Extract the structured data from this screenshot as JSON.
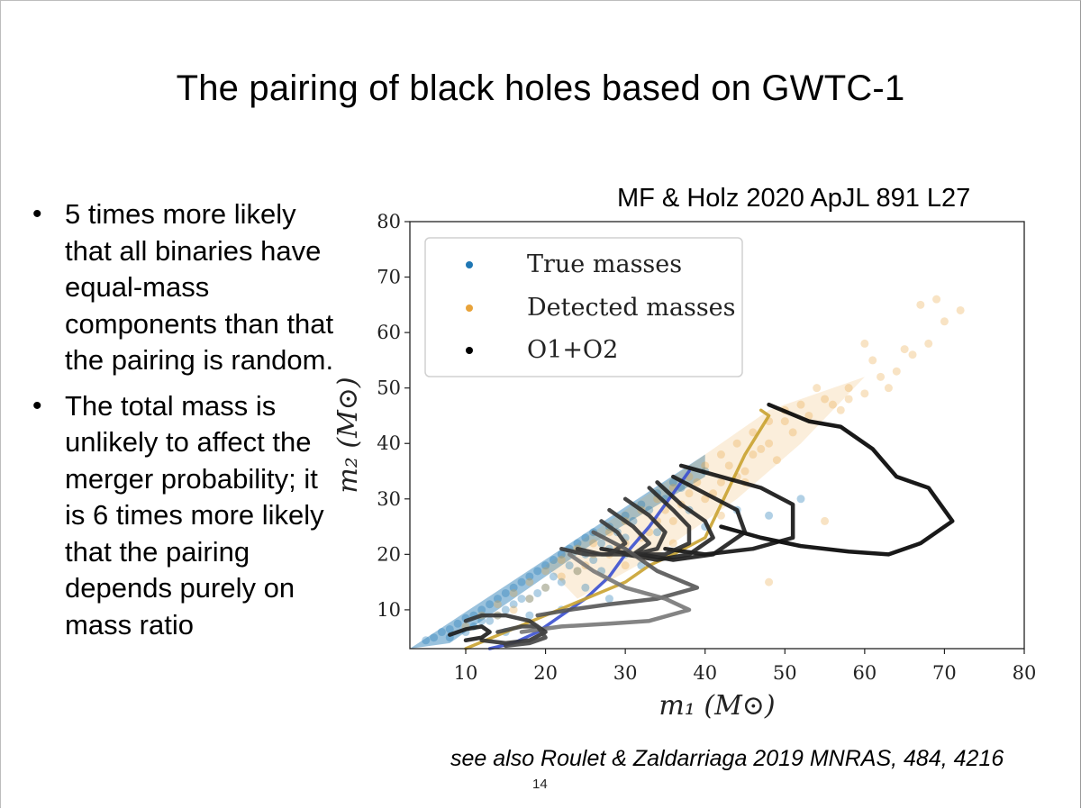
{
  "slide": {
    "title": "The pairing of black holes based on GWTC-1",
    "page_number": "14"
  },
  "bullets": [
    {
      "text": "5 times more likely that all binaries have equal-mass components than that the pairing is random."
    },
    {
      "text": "The total mass is unlikely to affect the merger probability; it is 6 times more likely that the pairing depends purely on mass ratio"
    }
  ],
  "bullet_symbol": "•",
  "citations": {
    "top": "MF & Holz 2020 ApJL 891 L27",
    "bottom": "see also Roulet & Zaldarriaga 2019 MNRAS, 484, 4216"
  },
  "chart_data": {
    "type": "scatter",
    "title": "",
    "xlabel": "m₁ (M⊙)",
    "ylabel": "m₂ (M⊙)",
    "xlim": [
      3,
      80
    ],
    "ylim": [
      3,
      80
    ],
    "xticks": [
      10,
      20,
      30,
      40,
      50,
      60,
      70,
      80
    ],
    "yticks": [
      10,
      20,
      30,
      40,
      50,
      60,
      70,
      80
    ],
    "legend_position": "top-left",
    "legend": [
      {
        "label": "True masses",
        "color": "#1f77b4"
      },
      {
        "label": "Detected masses",
        "color": "#e8a33a"
      },
      {
        "label": "O1+O2",
        "color": "#000000"
      }
    ],
    "scatter_series": [
      {
        "name": "True masses",
        "color": "#1f77b4",
        "points": [
          [
            5,
            4.5
          ],
          [
            6,
            5
          ],
          [
            7,
            6
          ],
          [
            8,
            6.5
          ],
          [
            9,
            7.5
          ],
          [
            10,
            8.5
          ],
          [
            11,
            9
          ],
          [
            12,
            10
          ],
          [
            13,
            11
          ],
          [
            14,
            12
          ],
          [
            15,
            13
          ],
          [
            16,
            14
          ],
          [
            17,
            15
          ],
          [
            18,
            16
          ],
          [
            19,
            17
          ],
          [
            20,
            18
          ],
          [
            21,
            19
          ],
          [
            22,
            20
          ],
          [
            23,
            21
          ],
          [
            24,
            22
          ],
          [
            25,
            23
          ],
          [
            26,
            24
          ],
          [
            28,
            25
          ],
          [
            30,
            27
          ],
          [
            32,
            29
          ],
          [
            34,
            31
          ],
          [
            36,
            33
          ],
          [
            8,
            5
          ],
          [
            10,
            6
          ],
          [
            12,
            8
          ],
          [
            14,
            9
          ],
          [
            16,
            11
          ],
          [
            18,
            12
          ],
          [
            20,
            14
          ],
          [
            22,
            15
          ],
          [
            24,
            17
          ],
          [
            26,
            19
          ],
          [
            28,
            21
          ],
          [
            30,
            23
          ],
          [
            11,
            7
          ],
          [
            13,
            8
          ],
          [
            15,
            10
          ],
          [
            17,
            12
          ],
          [
            19,
            13
          ],
          [
            21,
            16
          ],
          [
            23,
            18
          ],
          [
            25,
            20
          ],
          [
            27,
            22
          ],
          [
            29,
            24
          ],
          [
            31,
            26
          ],
          [
            33,
            28
          ],
          [
            35,
            30
          ],
          [
            37,
            32
          ],
          [
            22,
            10
          ],
          [
            25,
            14
          ],
          [
            28,
            12
          ],
          [
            32,
            18
          ],
          [
            36,
            20
          ],
          [
            40,
            25
          ],
          [
            44,
            28
          ],
          [
            48,
            27
          ],
          [
            52,
            30
          ],
          [
            40,
            35
          ],
          [
            15,
            6
          ],
          [
            18,
            9
          ],
          [
            27,
            17
          ],
          [
            30,
            20
          ],
          [
            34,
            24
          ],
          [
            38,
            28
          ]
        ]
      },
      {
        "name": "Detected masses",
        "color": "#e8a33a",
        "points": [
          [
            10,
            7
          ],
          [
            12,
            9
          ],
          [
            14,
            11
          ],
          [
            16,
            13
          ],
          [
            18,
            15
          ],
          [
            20,
            17
          ],
          [
            22,
            19
          ],
          [
            24,
            21
          ],
          [
            26,
            22
          ],
          [
            28,
            24
          ],
          [
            30,
            26
          ],
          [
            32,
            28
          ],
          [
            34,
            30
          ],
          [
            36,
            32
          ],
          [
            38,
            34
          ],
          [
            40,
            36
          ],
          [
            42,
            38
          ],
          [
            44,
            40
          ],
          [
            46,
            42
          ],
          [
            48,
            44
          ],
          [
            50,
            46
          ],
          [
            52,
            47
          ],
          [
            55,
            48
          ],
          [
            58,
            50
          ],
          [
            62,
            52
          ],
          [
            66,
            56
          ],
          [
            68,
            58
          ],
          [
            70,
            62
          ],
          [
            72,
            64
          ],
          [
            50,
            44
          ],
          [
            53,
            45
          ],
          [
            56,
            47
          ],
          [
            60,
            49
          ],
          [
            64,
            53
          ],
          [
            20,
            14
          ],
          [
            24,
            17
          ],
          [
            28,
            20
          ],
          [
            32,
            23
          ],
          [
            36,
            26
          ],
          [
            40,
            30
          ],
          [
            44,
            34
          ],
          [
            46,
            38
          ],
          [
            48,
            40
          ],
          [
            26,
            20
          ],
          [
            30,
            22
          ],
          [
            34,
            26
          ],
          [
            38,
            31
          ],
          [
            42,
            33
          ],
          [
            45,
            35
          ],
          [
            54,
            50
          ],
          [
            58,
            48
          ],
          [
            61,
            55
          ],
          [
            65,
            57
          ],
          [
            67,
            65
          ],
          [
            69,
            66
          ],
          [
            35,
            28
          ],
          [
            39,
            33
          ],
          [
            43,
            36
          ],
          [
            47,
            39
          ],
          [
            51,
            42
          ],
          [
            57,
            46
          ],
          [
            63,
            50
          ],
          [
            25,
            18
          ],
          [
            29,
            21
          ],
          [
            33,
            24
          ],
          [
            37,
            29
          ],
          [
            41,
            31
          ],
          [
            45,
            33
          ],
          [
            49,
            37
          ],
          [
            22,
            16
          ],
          [
            18,
            12
          ],
          [
            16,
            10
          ],
          [
            14,
            9
          ],
          [
            30,
            18
          ],
          [
            36,
            22
          ],
          [
            42,
            27
          ],
          [
            48,
            15
          ],
          [
            55,
            26
          ],
          [
            60,
            58
          ]
        ]
      },
      {
        "name": "O1+O2",
        "color": "#000000",
        "points": []
      }
    ],
    "contours": [
      {
        "name": "blue contour",
        "color": "#3a4fd0",
        "points": [
          [
            13,
            3
          ],
          [
            16,
            4
          ],
          [
            19,
            6
          ],
          [
            22,
            9
          ],
          [
            25,
            12
          ],
          [
            28,
            16
          ],
          [
            30,
            20
          ],
          [
            33,
            25
          ],
          [
            36,
            31
          ],
          [
            38,
            35
          ]
        ]
      },
      {
        "name": "orange contour",
        "color": "#c9a230",
        "points": [
          [
            10,
            3
          ],
          [
            15,
            6
          ],
          [
            20,
            9
          ],
          [
            25,
            12
          ],
          [
            30,
            15
          ],
          [
            33,
            18
          ],
          [
            36,
            20
          ],
          [
            40,
            23
          ],
          [
            43,
            32
          ],
          [
            45,
            38
          ],
          [
            48,
            45
          ],
          [
            47,
            46
          ]
        ]
      },
      {
        "name": "O1+O2 contour A",
        "color": "#000000",
        "points": [
          [
            48,
            47
          ],
          [
            53,
            44
          ],
          [
            57,
            43
          ],
          [
            61,
            39
          ],
          [
            64,
            34
          ],
          [
            68,
            32
          ],
          [
            71,
            26
          ],
          [
            67,
            22
          ],
          [
            63,
            20
          ],
          [
            58,
            20.5
          ],
          [
            52,
            21.5
          ],
          [
            47,
            23
          ],
          [
            42,
            25
          ]
        ]
      },
      {
        "name": "O1+O2 contour B",
        "color": "#111111",
        "points": [
          [
            37,
            36
          ],
          [
            42,
            34
          ],
          [
            47,
            32
          ],
          [
            51,
            29
          ],
          [
            51,
            23
          ],
          [
            46,
            21
          ],
          [
            40,
            20
          ],
          [
            35,
            21
          ]
        ]
      },
      {
        "name": "O1+O2 contour C",
        "color": "#1a1a1a",
        "points": [
          [
            36,
            34
          ],
          [
            40,
            31
          ],
          [
            44,
            28
          ],
          [
            45,
            24
          ],
          [
            41,
            20
          ],
          [
            36,
            19
          ],
          [
            32,
            20
          ]
        ]
      },
      {
        "name": "O1+O2 contour D",
        "color": "#222222",
        "points": [
          [
            34,
            33
          ],
          [
            37,
            29
          ],
          [
            40,
            26
          ],
          [
            41,
            23
          ],
          [
            38,
            20
          ],
          [
            34,
            19
          ],
          [
            30,
            20
          ]
        ]
      },
      {
        "name": "O1+O2 contour E",
        "color": "#2a2a2a",
        "points": [
          [
            33,
            32
          ],
          [
            36,
            28
          ],
          [
            38,
            25
          ],
          [
            38,
            22
          ],
          [
            35,
            20
          ],
          [
            31,
            20
          ],
          [
            27,
            21
          ]
        ]
      },
      {
        "name": "O1+O2 contour F",
        "color": "#2f2f2f",
        "points": [
          [
            30,
            30
          ],
          [
            33,
            27
          ],
          [
            35,
            24
          ],
          [
            34,
            21
          ],
          [
            31,
            20
          ],
          [
            27,
            21
          ]
        ]
      },
      {
        "name": "O1+O2 contour G",
        "color": "#333333",
        "points": [
          [
            28,
            28
          ],
          [
            31,
            25
          ],
          [
            33,
            22
          ],
          [
            31,
            20
          ],
          [
            27,
            20
          ],
          [
            24,
            21
          ]
        ]
      },
      {
        "name": "O1+O2 contour H",
        "color": "#3a3a3a",
        "points": [
          [
            27,
            26
          ],
          [
            29,
            24
          ],
          [
            30,
            22
          ],
          [
            28,
            20
          ],
          [
            25,
            20
          ],
          [
            22,
            21
          ]
        ]
      },
      {
        "name": "O1+O2 contour I",
        "color": "#555555",
        "points": [
          [
            26,
            24
          ],
          [
            30,
            21
          ],
          [
            34,
            17
          ],
          [
            39,
            14
          ],
          [
            34,
            12
          ],
          [
            28,
            11
          ],
          [
            23,
            10
          ],
          [
            19,
            9
          ]
        ]
      },
      {
        "name": "O1+O2 contour J",
        "color": "#777777",
        "points": [
          [
            23,
            20
          ],
          [
            26,
            17
          ],
          [
            30,
            14
          ],
          [
            35,
            12
          ],
          [
            38,
            10
          ],
          [
            33,
            8
          ],
          [
            28,
            7.5
          ],
          [
            22,
            7
          ],
          [
            17,
            6
          ]
        ]
      },
      {
        "name": "O1+O2 contour K",
        "color": "#333333",
        "points": [
          [
            10,
            8
          ],
          [
            12,
            9
          ],
          [
            15,
            9
          ],
          [
            18,
            8
          ],
          [
            20,
            6
          ],
          [
            18,
            4.5
          ],
          [
            15,
            4
          ],
          [
            12,
            4.5
          ]
        ]
      },
      {
        "name": "O1+O2 contour L",
        "color": "#1a1a1a",
        "points": [
          [
            8,
            5.5
          ],
          [
            10,
            6.5
          ],
          [
            12,
            7
          ],
          [
            13,
            6
          ],
          [
            12,
            5
          ],
          [
            10,
            4.5
          ]
        ]
      },
      {
        "name": "O1+O2 contour M",
        "color": "#444444",
        "points": [
          [
            14,
            6
          ],
          [
            17,
            7
          ],
          [
            19,
            7
          ],
          [
            20,
            5
          ],
          [
            18,
            4
          ],
          [
            15,
            3.5
          ]
        ]
      }
    ]
  }
}
